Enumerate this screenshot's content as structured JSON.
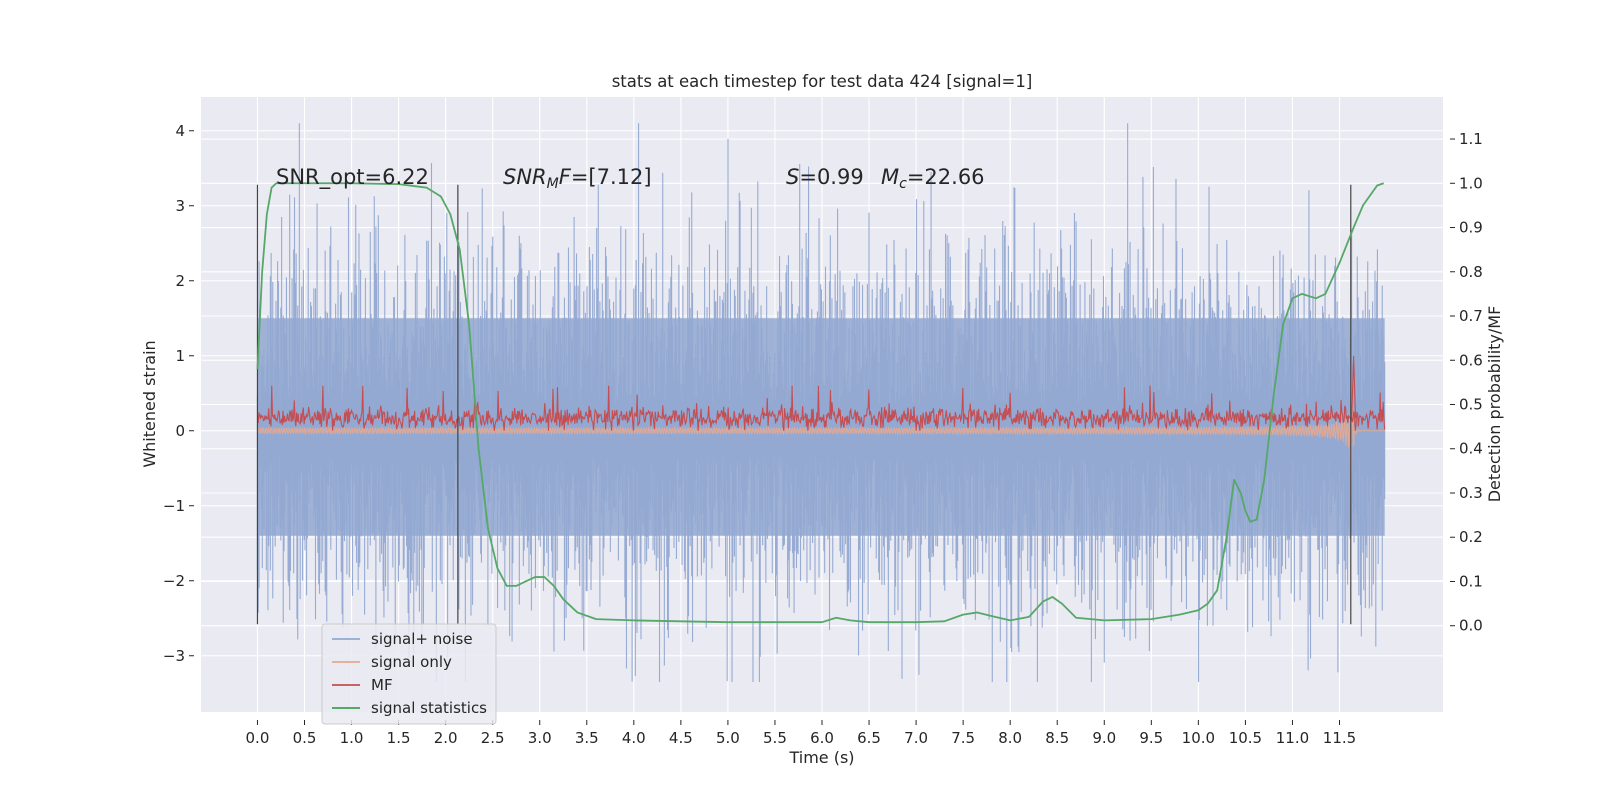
{
  "chart_data": {
    "type": "line",
    "title": "stats at each timestep for test data 424 [signal=1]",
    "xlabel": "Time (s)",
    "ylabel_left": "Whitened strain",
    "ylabel_right": "Detection probability/MF",
    "xlim": [
      -0.6,
      12.6
    ],
    "ylim_left": [
      -3.75,
      4.45
    ],
    "ylim_right": [
      -0.195,
      1.195
    ],
    "grid": true,
    "legend_position": "lower-left",
    "x_ticks": [
      "0.0",
      "0.5",
      "1.0",
      "1.5",
      "2.0",
      "2.5",
      "3.0",
      "3.5",
      "4.0",
      "4.5",
      "5.0",
      "5.5",
      "6.0",
      "6.5",
      "7.0",
      "7.5",
      "8.0",
      "8.5",
      "9.0",
      "9.5",
      "10.0",
      "10.5",
      "11.0",
      "11.5"
    ],
    "y_ticks_left": [
      "−3",
      "−2",
      "−1",
      "0",
      "1",
      "2",
      "3",
      "4"
    ],
    "y_ticks_right": [
      "0.0",
      "0.1",
      "0.2",
      "0.3",
      "0.4",
      "0.5",
      "0.6",
      "0.7",
      "0.8",
      "0.9",
      "1.0",
      "1.1"
    ],
    "annotations": {
      "snr_opt": "SNR_opt=6.22",
      "snr_mf_symbol": "SNR",
      "snr_mf_sub": "M",
      "snr_mf_f": "F",
      "snr_mf_value": "=[7.12]",
      "s_symbol": "S",
      "s_value": "=0.99",
      "mc_symbol": "M",
      "mc_sub": "c",
      "mc_value": "=22.66"
    },
    "vertical_markers_x": [
      0.0,
      2.13,
      11.62
    ],
    "series": [
      {
        "name": "signal+ noise",
        "color": "#92a8d1",
        "kind": "noise",
        "x_range": [
          0.0,
          11.98
        ],
        "spread_sigma": 1.0,
        "peak_max": 4.1,
        "peak_min": -3.35
      },
      {
        "name": "signal only",
        "color": "#e8a88f",
        "kind": "chirp",
        "x_range": [
          0.0,
          11.98
        ],
        "merger_time": 11.62,
        "merger_amplitude": 1.3
      },
      {
        "name": "MF",
        "color": "#c44e52",
        "kind": "band",
        "x_range": [
          0.0,
          11.98
        ],
        "center": 0.17,
        "spread": 0.12,
        "spike_x": 11.65,
        "spike_y": 1.0
      },
      {
        "name": "signal statistics",
        "color": "#55a868",
        "axis": "right",
        "x": [
          0.0,
          0.05,
          0.1,
          0.15,
          0.2,
          0.3,
          0.5,
          1.0,
          1.5,
          1.8,
          1.95,
          2.05,
          2.15,
          2.25,
          2.35,
          2.45,
          2.55,
          2.65,
          2.75,
          2.85,
          2.95,
          3.05,
          3.15,
          3.25,
          3.4,
          3.6,
          4.0,
          4.5,
          5.0,
          5.5,
          6.0,
          6.15,
          6.3,
          6.5,
          7.0,
          7.3,
          7.5,
          7.65,
          7.8,
          8.0,
          8.2,
          8.35,
          8.45,
          8.55,
          8.7,
          9.0,
          9.5,
          9.8,
          10.0,
          10.1,
          10.2,
          10.3,
          10.38,
          10.45,
          10.5,
          10.55,
          10.62,
          10.7,
          10.8,
          10.9,
          11.0,
          11.1,
          11.25,
          11.35,
          11.5,
          11.65,
          11.75,
          11.85,
          11.9,
          11.97
        ],
        "y": [
          0.58,
          0.8,
          0.93,
          0.99,
          1.0,
          1.0,
          1.0,
          1.0,
          0.998,
          0.99,
          0.97,
          0.93,
          0.85,
          0.68,
          0.4,
          0.22,
          0.13,
          0.09,
          0.09,
          0.1,
          0.11,
          0.11,
          0.09,
          0.06,
          0.03,
          0.015,
          0.012,
          0.01,
          0.008,
          0.008,
          0.008,
          0.018,
          0.012,
          0.008,
          0.008,
          0.01,
          0.025,
          0.03,
          0.022,
          0.012,
          0.02,
          0.055,
          0.065,
          0.05,
          0.018,
          0.012,
          0.015,
          0.025,
          0.035,
          0.05,
          0.08,
          0.2,
          0.33,
          0.3,
          0.26,
          0.235,
          0.24,
          0.33,
          0.52,
          0.68,
          0.74,
          0.75,
          0.74,
          0.75,
          0.82,
          0.9,
          0.95,
          0.98,
          0.995,
          1.0
        ]
      }
    ]
  }
}
